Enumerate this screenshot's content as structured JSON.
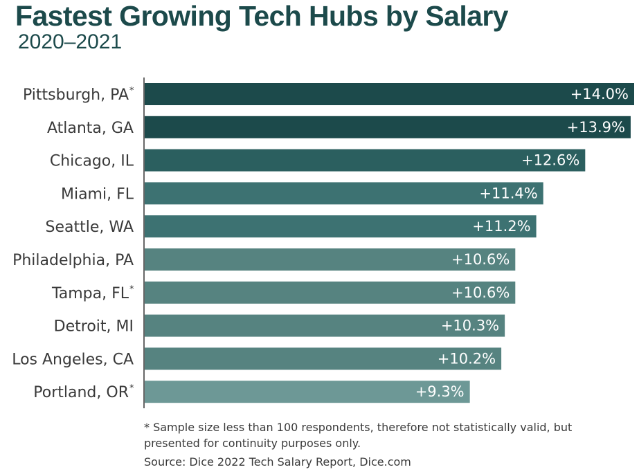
{
  "title": "Fastest Growing Tech Hubs by Salary",
  "subtitle": "2020–2021",
  "footnote": "* Sample size less than 100 respondents, therefore not statistically valid, but presented for continuity purposes only.",
  "source": "Source: Dice 2022 Tech Salary Report, Dice.com",
  "chart_data": {
    "type": "bar",
    "orientation": "horizontal",
    "title": "Fastest Growing Tech Hubs by Salary",
    "subtitle": "2020–2021",
    "categories": [
      "Pittsburgh, PA",
      "Atlanta, GA",
      "Chicago, IL",
      "Miami, FL",
      "Seattle, WA",
      "Philadelphia, PA",
      "Tampa, FL",
      "Detroit, MI",
      "Los Angeles, CA",
      "Portland, OR"
    ],
    "asterisk": [
      true,
      false,
      false,
      false,
      false,
      false,
      true,
      false,
      false,
      true
    ],
    "values": [
      14.0,
      13.9,
      12.6,
      11.4,
      11.2,
      10.6,
      10.6,
      10.3,
      10.2,
      9.3
    ],
    "value_labels": [
      "+14.0%",
      "+13.9%",
      "+12.6%",
      "+11.4%",
      "+11.2%",
      "+10.6%",
      "+10.6%",
      "+10.3%",
      "+10.2%",
      "+9.3%"
    ],
    "colors": [
      "#1c4a4b",
      "#1c4a4b",
      "#2b5f5f",
      "#3d7272",
      "#3d7272",
      "#568380",
      "#568380",
      "#568380",
      "#568380",
      "#6d9896"
    ],
    "xlabel": "",
    "ylabel": "",
    "grid": false,
    "legend": "none"
  }
}
